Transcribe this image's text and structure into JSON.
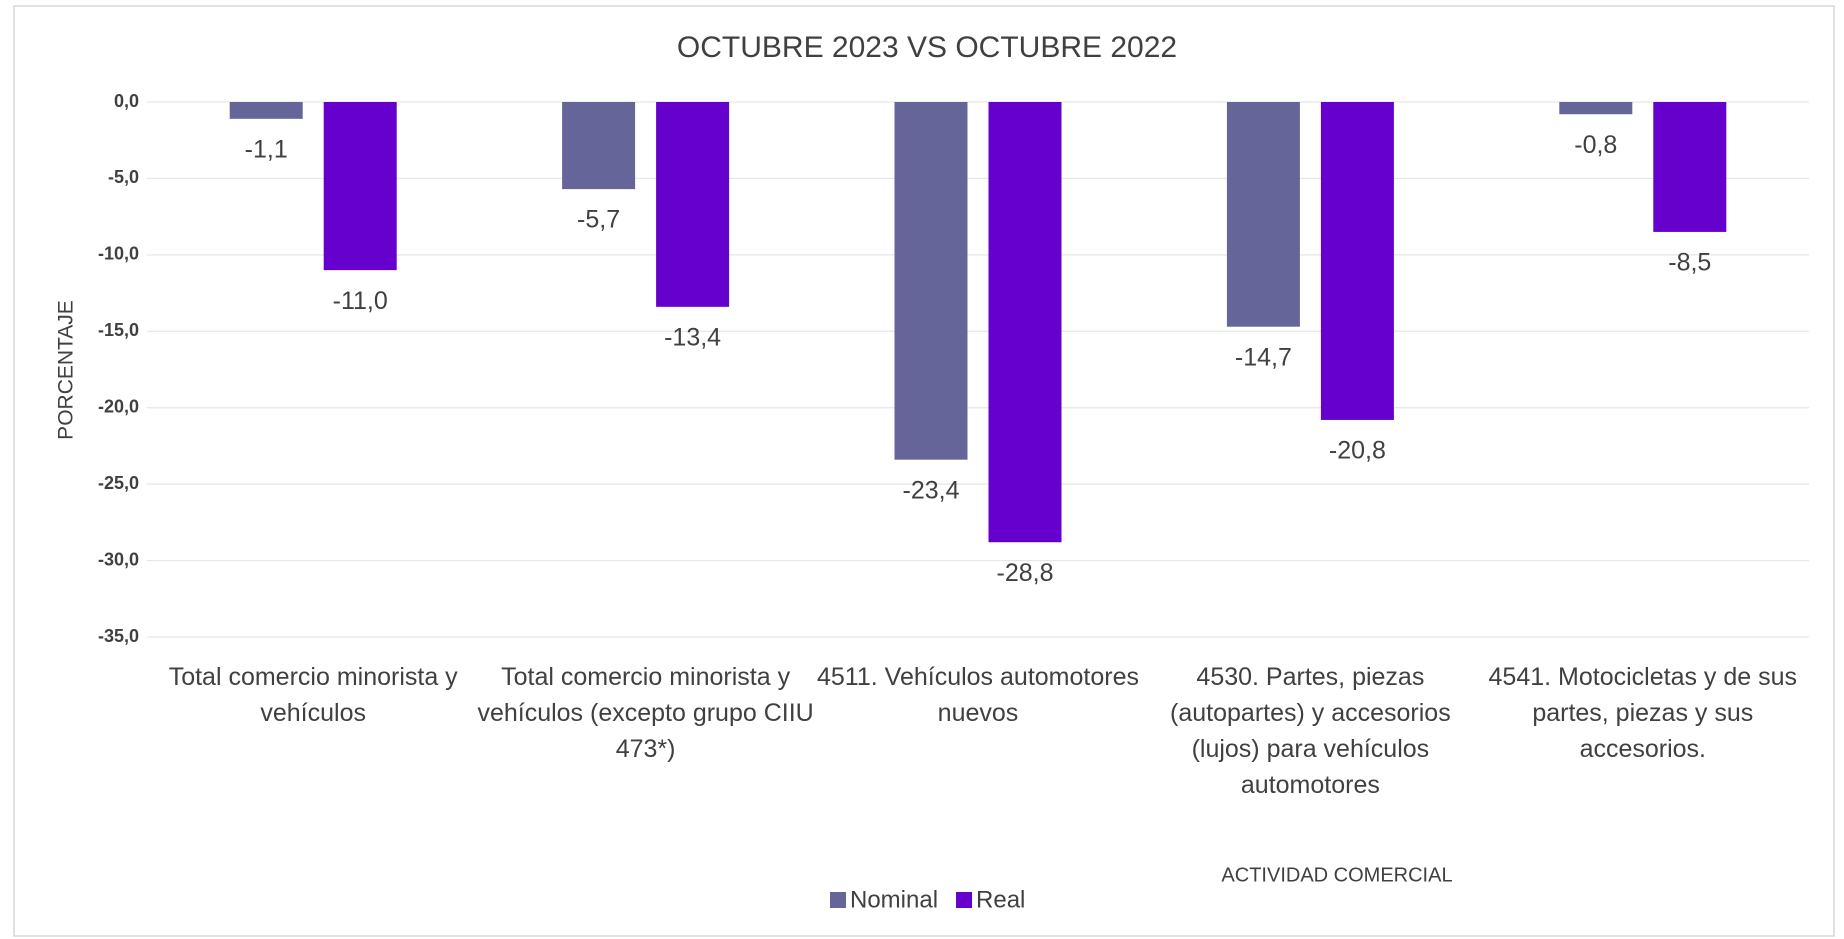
{
  "chart_data": {
    "type": "bar",
    "title": "OCTUBRE 2023 VS OCTUBRE 2022",
    "y_label": "PORCENTAJE",
    "x_label": "ACTIVIDAD COMERCIAL",
    "categories": [
      "Total comercio minorista y vehículos",
      "Total comercio minorista y vehículos (excepto grupo CIIU 473*)",
      "4511. Vehículos automotores nuevos",
      "4530. Partes, piezas (autopartes) y accesorios (lujos) para vehículos automotores",
      "4541.  Motocicletas y de sus partes, piezas y sus accesorios."
    ],
    "series": [
      {
        "name": "Nominal",
        "color": "#65659a",
        "values": [
          -1.1,
          -5.7,
          -23.4,
          -14.7,
          -0.8
        ],
        "value_labels": [
          "-1,1",
          "-5,7",
          "-23,4",
          "-14,7",
          "-0,8"
        ]
      },
      {
        "name": "Real",
        "color": "#6600cc",
        "values": [
          -11.0,
          -13.4,
          -28.8,
          -20.8,
          -8.5
        ],
        "value_labels": [
          "-11,0",
          "-13,4",
          "-28,8",
          "-20,8",
          "-8,5"
        ]
      }
    ],
    "ylim": [
      -35,
      0
    ],
    "yticks": [
      {
        "value": 0,
        "label": "0,0"
      },
      {
        "value": -5,
        "label": "-5,0"
      },
      {
        "value": -10,
        "label": "-10,0"
      },
      {
        "value": -15,
        "label": "-15,0"
      },
      {
        "value": -20,
        "label": "-20,0"
      },
      {
        "value": -25,
        "label": "-25,0"
      },
      {
        "value": -30,
        "label": "-30,0"
      },
      {
        "value": -35,
        "label": "-35,0"
      }
    ],
    "grid": true,
    "legend": "bottom"
  }
}
